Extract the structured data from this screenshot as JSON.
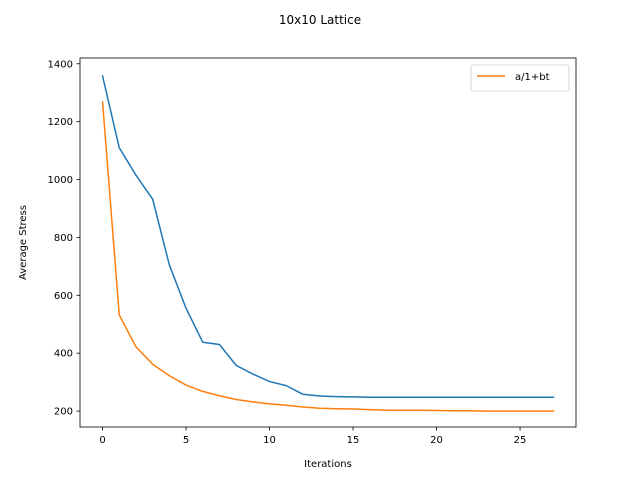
{
  "chart_data": {
    "type": "line",
    "title": "10x10 Lattice",
    "xlabel": "Iterations",
    "ylabel": "Average Stress",
    "xlim": [
      -1.35,
      28.35
    ],
    "ylim": [
      145,
      1420
    ],
    "xticks": [
      0,
      5,
      10,
      15,
      20,
      25
    ],
    "yticks": [
      200,
      400,
      600,
      800,
      1000,
      1200,
      1400
    ],
    "grid": false,
    "legend_position": "top-right",
    "x": [
      0,
      1,
      2,
      3,
      4,
      5,
      6,
      7,
      8,
      9,
      10,
      11,
      12,
      13,
      14,
      15,
      16,
      17,
      18,
      19,
      20,
      21,
      22,
      23,
      24,
      25,
      26,
      27
    ],
    "series": [
      {
        "name": "",
        "color": "#1f77b4",
        "values": [
          1358,
          1110,
          1015,
          932,
          705,
          555,
          438,
          430,
          358,
          328,
          302,
          288,
          258,
          252,
          250,
          249,
          248,
          248,
          248,
          248,
          248,
          248,
          248,
          248,
          248,
          248,
          248,
          248
        ]
      },
      {
        "name": "a/1+bt",
        "color": "#ff7f0e",
        "values": [
          1268,
          532,
          422,
          362,
          322,
          290,
          268,
          253,
          240,
          232,
          225,
          220,
          214,
          210,
          208,
          207,
          205,
          203,
          203,
          203,
          202,
          201,
          201,
          200,
          200,
          200,
          200,
          200
        ]
      }
    ]
  }
}
